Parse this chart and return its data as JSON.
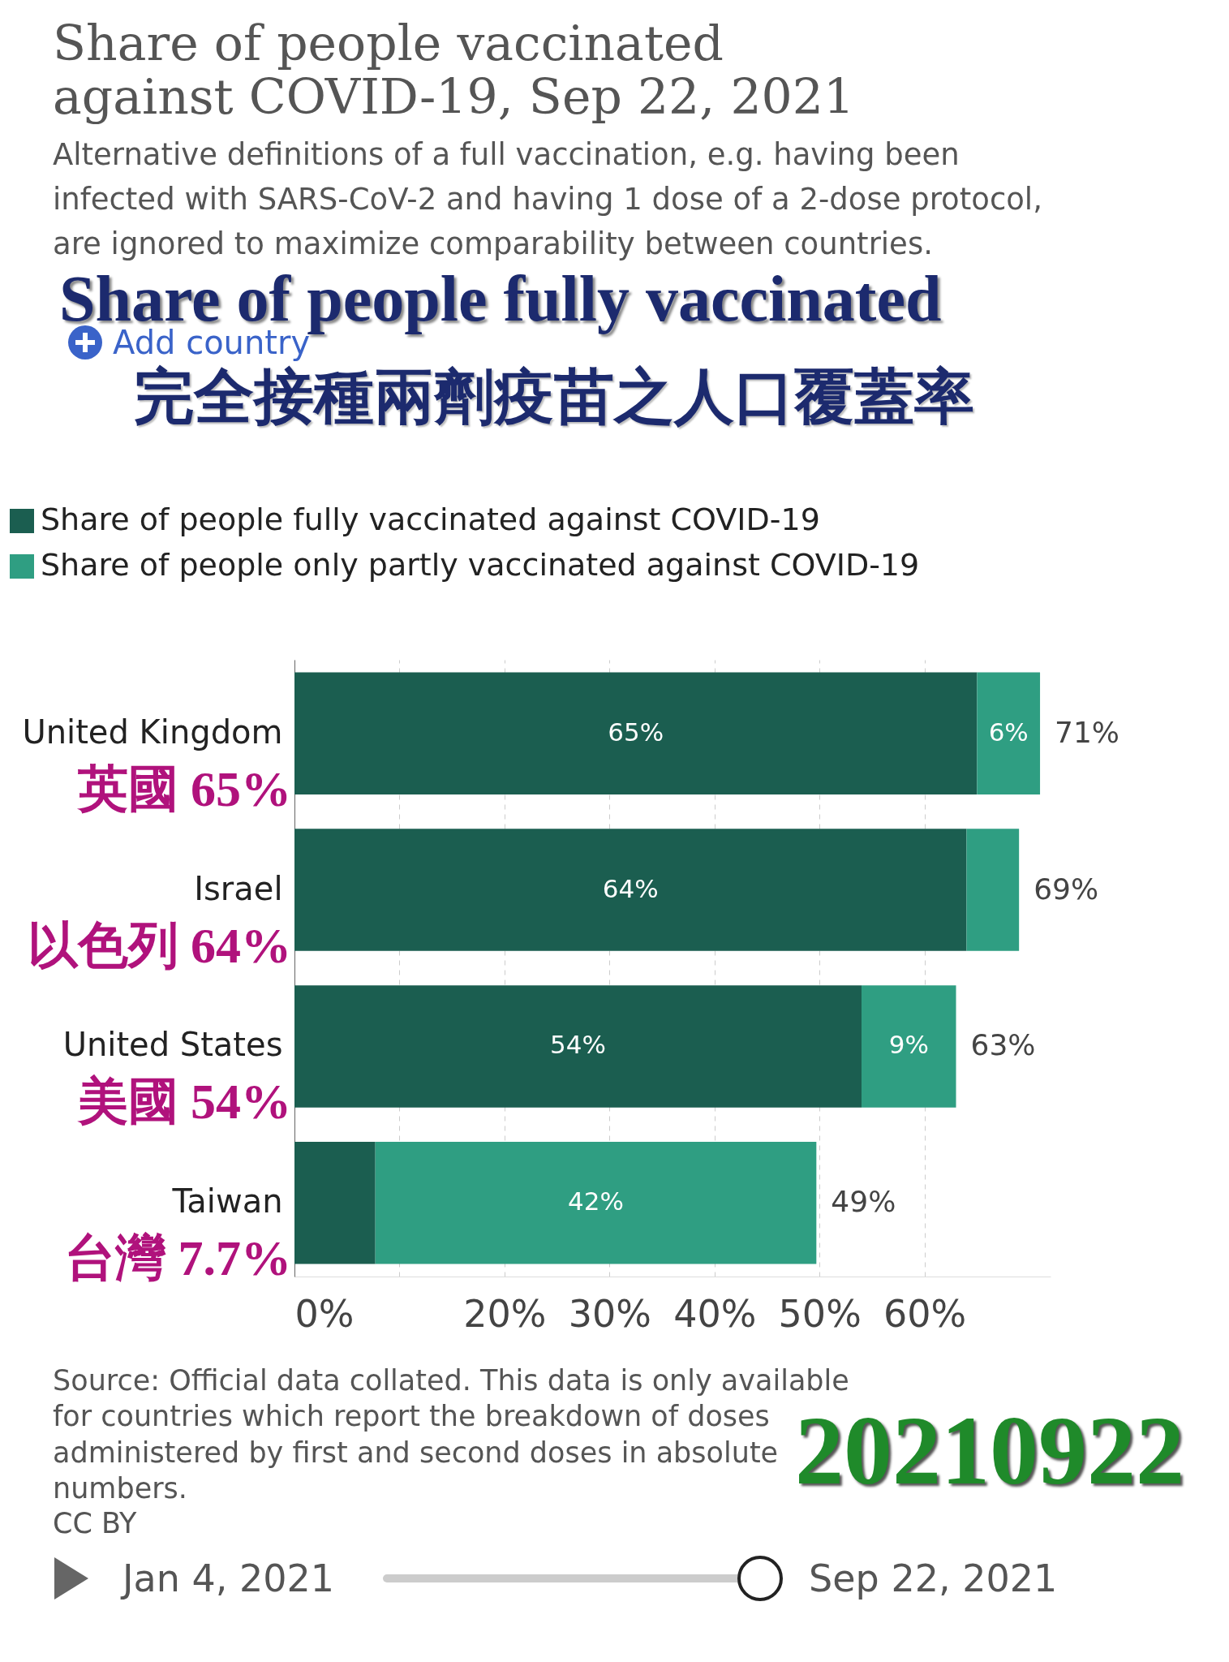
{
  "chart_data": {
    "type": "bar",
    "orientation": "horizontal",
    "stacked": true,
    "title": "Share of people vaccinated against COVID-19, Sep 22, 2021",
    "subtitle": "Alternative definitions of a full vaccination, e.g. having been infected with SARS-CoV-2 and having 1 dose of a 2-dose protocol, are ignored to maximize comparability between countries.",
    "categories": [
      "United Kingdom",
      "Israel",
      "United States",
      "Taiwan"
    ],
    "series": [
      {
        "name": "Share of people fully vaccinated against COVID-19",
        "color": "#1b5e50",
        "values": [
          65,
          64,
          54,
          7.7
        ],
        "value_labels": [
          "65%",
          "64%",
          "54%",
          null
        ]
      },
      {
        "name": "Share of people only partly vaccinated against COVID-19",
        "color": "#2f9e82",
        "values": [
          6,
          5,
          9,
          42
        ],
        "value_labels": [
          "6%",
          null,
          "9%",
          "42%"
        ]
      }
    ],
    "totals": [
      "71%",
      "69%",
      "63%",
      "49%"
    ],
    "xlim": [
      0,
      72
    ],
    "xticks": [
      {
        "value": 0,
        "label": "0%"
      },
      {
        "value": 10,
        "label": null
      },
      {
        "value": 20,
        "label": "20%"
      },
      {
        "value": 30,
        "label": "30%"
      },
      {
        "value": 40,
        "label": "40%"
      },
      {
        "value": 50,
        "label": "50%"
      },
      {
        "value": 60,
        "label": "60%"
      }
    ],
    "grid": "x",
    "legend": "top left",
    "annotations": [
      "Share of people fully vaccinated",
      "完全接種兩劑疫苗之人口覆蓋率",
      "Add country",
      "英國 65%",
      "以色列 64%",
      "美國 54%",
      "台灣 7.7%",
      "Source: Official data collated. This data is only available for countries which report the breakdown of doses administered by first and second doses in absolute numbers.",
      "CC BY",
      "20210922",
      "Jan 4, 2021",
      "Sep 22, 2021"
    ]
  }
}
